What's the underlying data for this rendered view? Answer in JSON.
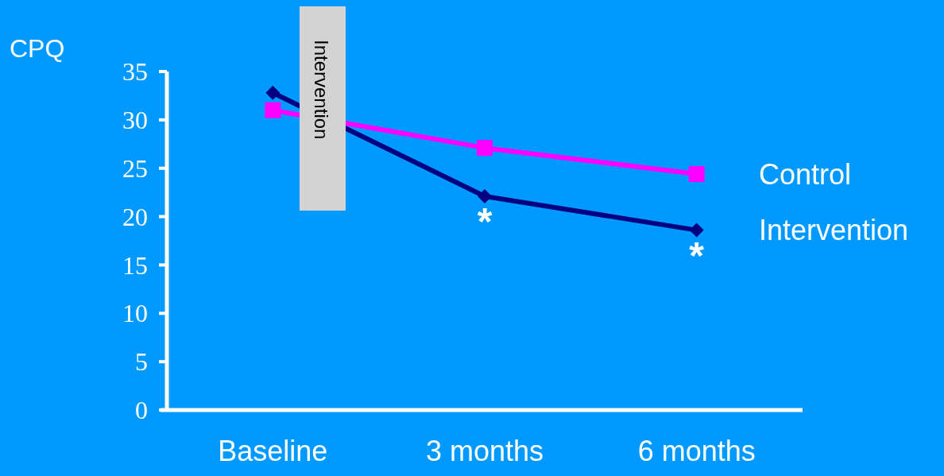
{
  "chart_data": {
    "type": "line",
    "ylabel": "CPQ",
    "categories": [
      "Baseline",
      "3 months",
      "6 months"
    ],
    "series": [
      {
        "name": "Control",
        "color": "#ff00ff",
        "marker": "square",
        "values": [
          31.0,
          27.1,
          24.4
        ]
      },
      {
        "name": "Intervention",
        "color": "#000080",
        "marker": "diamond",
        "values": [
          32.8,
          22.1,
          18.6
        ]
      }
    ],
    "ylim": [
      0,
      35
    ],
    "yticks": [
      0,
      5,
      10,
      15,
      20,
      25,
      30,
      35
    ],
    "grid": false,
    "legend": false,
    "line_style": "solid",
    "annotations": [
      "Intervention",
      {
        "text": "*",
        "x": "3 months",
        "y": 22.1
      },
      {
        "text": "*",
        "x": "6 months",
        "y": 18.6
      }
    ]
  }
}
